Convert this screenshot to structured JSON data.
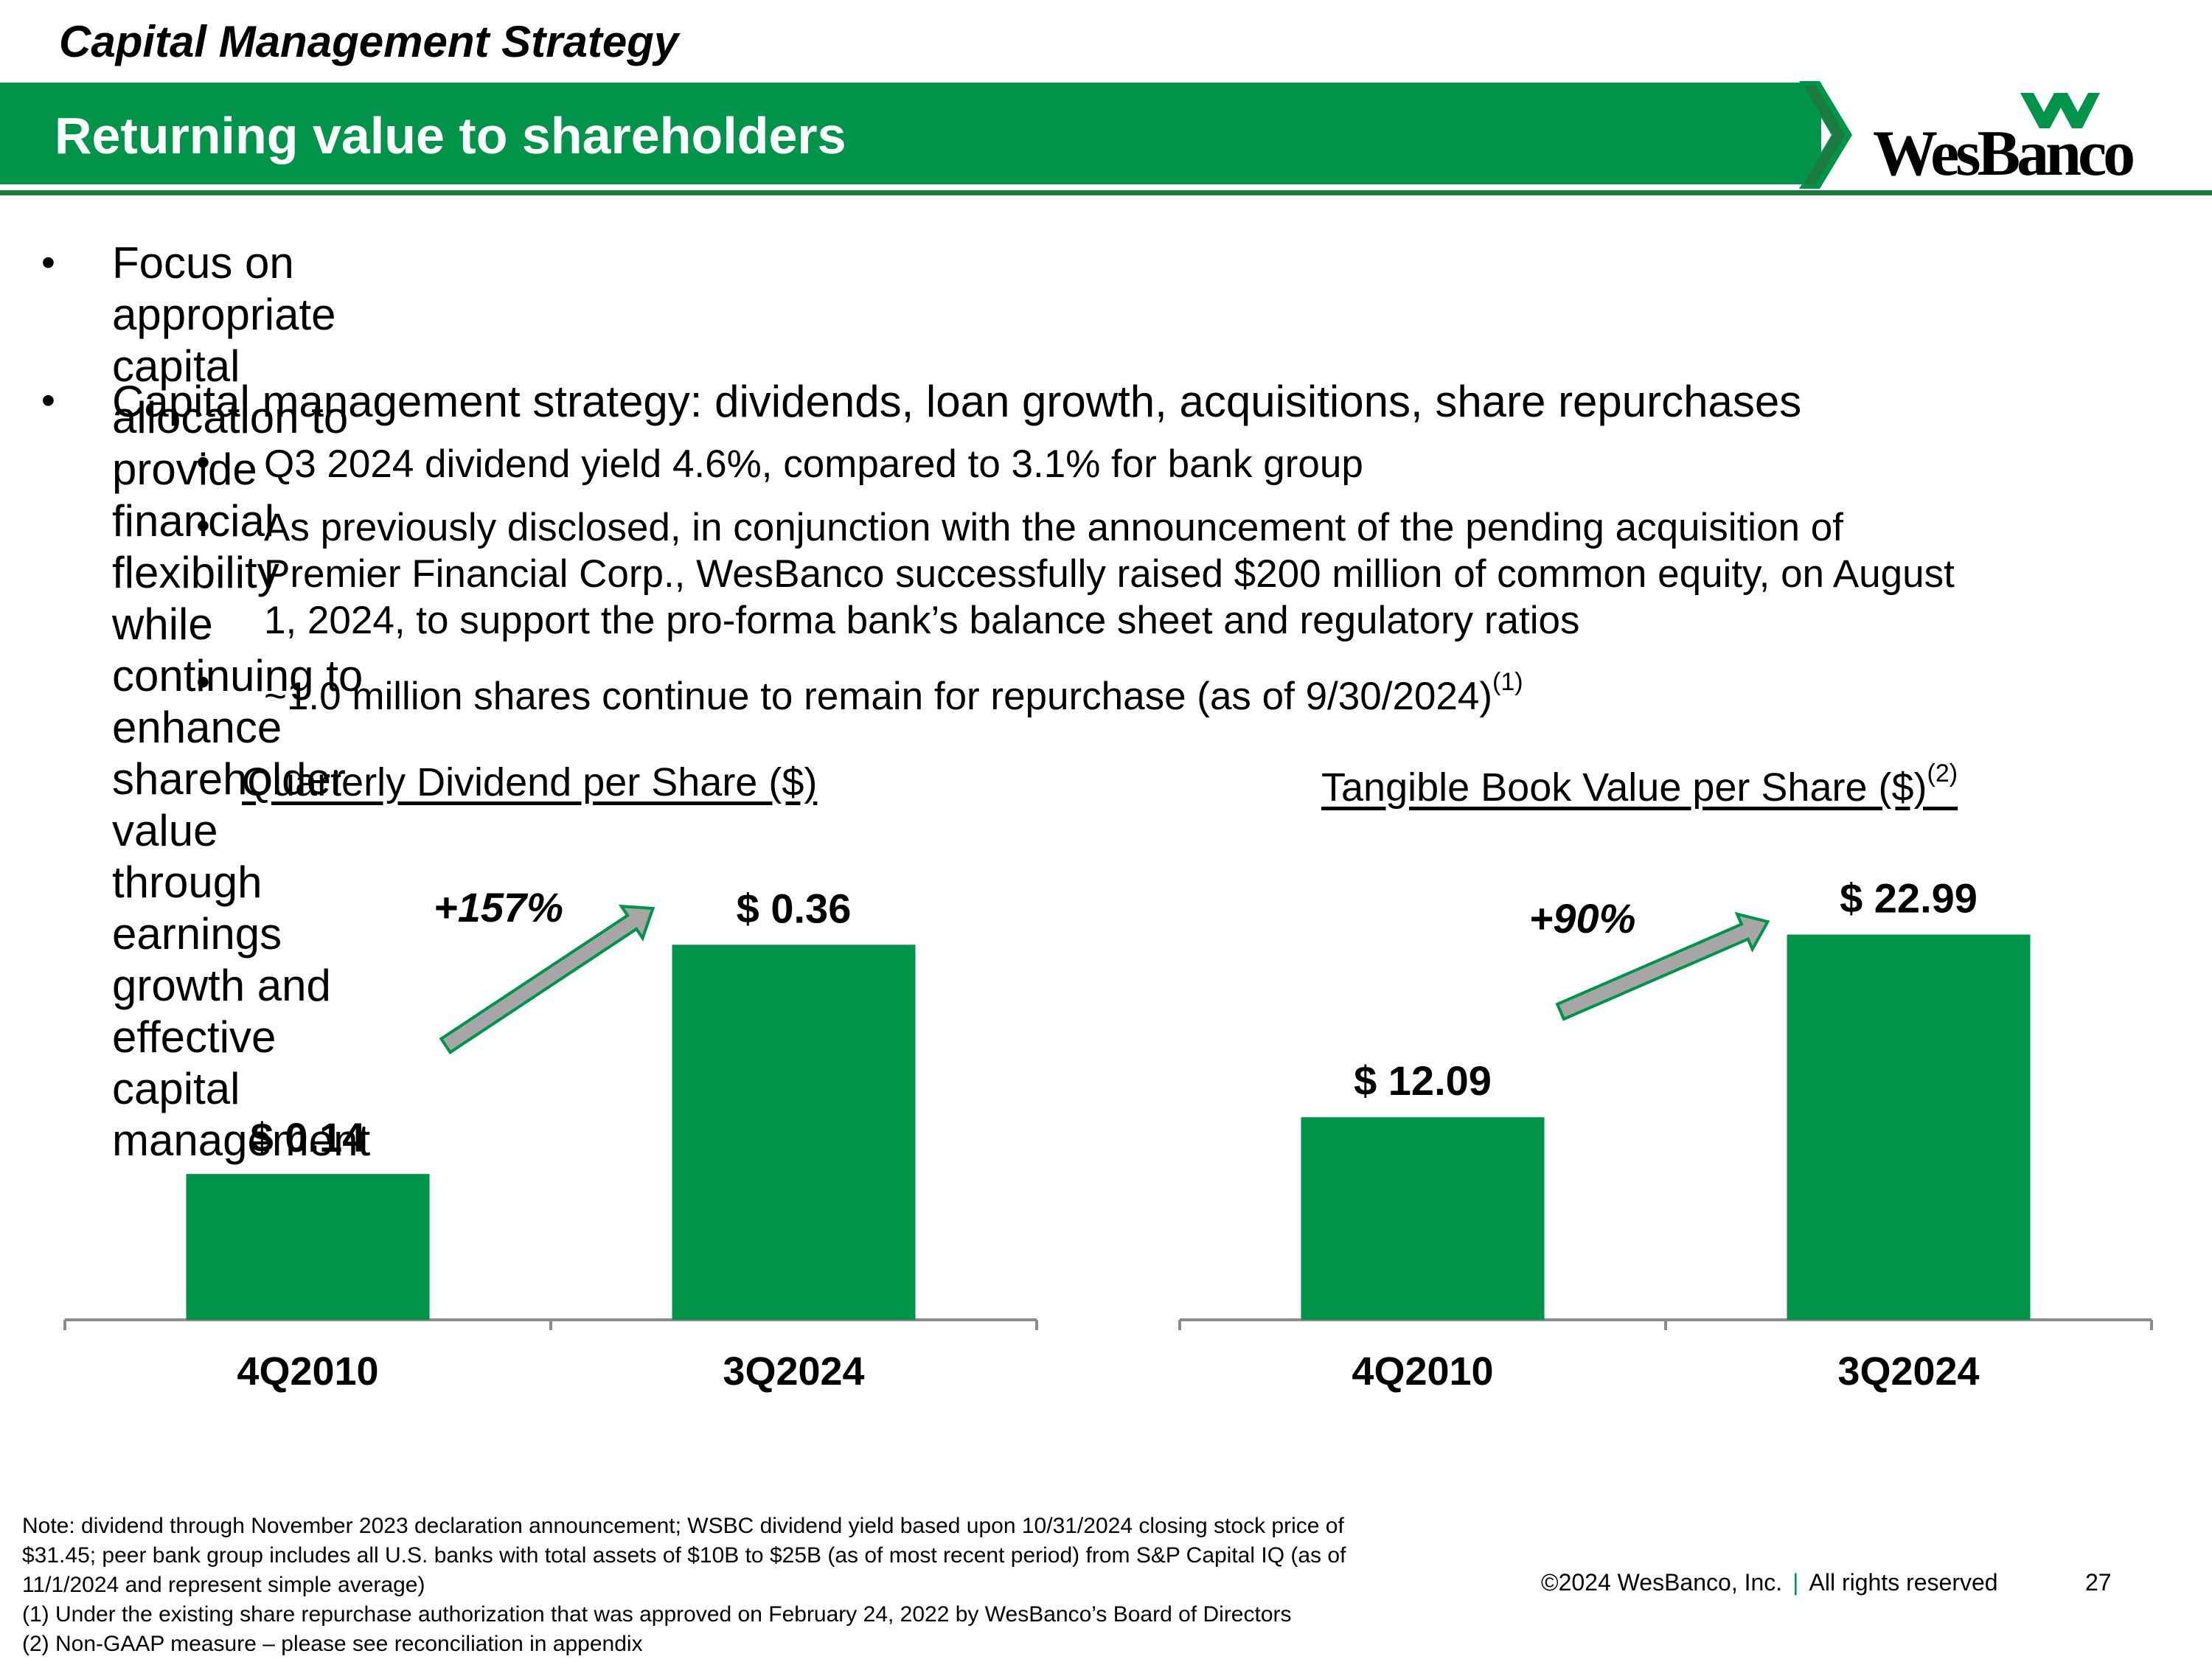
{
  "header": {
    "section": "Capital Management Strategy",
    "title": "Returning value to shareholders",
    "logo": "WesBanco"
  },
  "bullets": {
    "main1": [
      "Focus on appropriate capital allocation to provide financial flexibility while continuing to",
      "enhance shareholder value through earnings growth and effective capital management"
    ],
    "main2": "Capital management strategy:  dividends, loan growth, acquisitions, share repurchases",
    "sub1": "Q3 2024 dividend yield 4.6%, compared to 3.1% for bank group",
    "sub2": [
      "As previously disclosed, in conjunction with the announcement of the pending acquisition of",
      "Premier Financial Corp., WesBanco successfully raised $200 million of common equity, on August",
      "1, 2024, to support the pro-forma bank’s balance sheet and regulatory ratios"
    ],
    "sub3": "~1.0 million shares continue to remain for repurchase (as of 9/30/2024)",
    "sub3_sup": "(1)",
    "bullet_char": "•"
  },
  "chart_data": [
    {
      "type": "bar",
      "title": "Quarterly Dividend per Share ($)",
      "categories": [
        "4Q2010",
        "3Q2024"
      ],
      "values": [
        0.14,
        0.36
      ],
      "data_labels": [
        "$ 0.14",
        "$ 0.36"
      ],
      "growth_label": "+157%",
      "ylim": [
        0,
        0.46
      ],
      "color": "#00944a"
    },
    {
      "type": "bar",
      "title": "Tangible Book Value per Share ($)",
      "title_sup": "(2)",
      "categories": [
        "4Q2010",
        "3Q2024"
      ],
      "values": [
        12.09,
        22.99
      ],
      "data_labels": [
        "$ 12.09",
        "$ 22.99"
      ],
      "growth_label": "+90%",
      "ylim": [
        0,
        28.6
      ],
      "color": "#00944a"
    }
  ],
  "footnotes": [
    "Note: dividend through November 2023 declaration announcement; WSBC dividend yield based upon 10/31/2024 closing stock price of",
    "$31.45; peer bank group includes all U.S. banks with total assets of $10B to $25B (as of most recent period) from S&P Capital IQ (as of",
    "11/1/2024 and represent simple average)",
    "(1)    Under the existing share repurchase authorization that was approved on February 24, 2022 by WesBanco’s Board of Directors",
    "(2)    Non-GAAP measure – please see reconciliation in appendix"
  ],
  "footer": {
    "copyright": "©2024 WesBanco, Inc.",
    "separator": "|",
    "rights": "All rights reserved",
    "page": "27"
  },
  "colors": {
    "brand_green": "#00944a",
    "dark_green": "#1b7a3e",
    "arrow_gray": "#a6a6a6"
  }
}
